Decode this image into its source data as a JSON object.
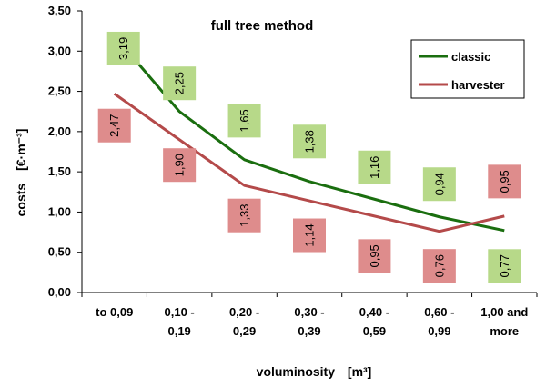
{
  "chart_data": {
    "type": "line",
    "title": "full tree method",
    "xlabel": "voluminosity",
    "xlabel_unit": "[m³]",
    "ylabel": "costs",
    "ylabel_unit": "[€·m⁻³]",
    "ylim": [
      0,
      3.5
    ],
    "yticks": [
      "0,00",
      "0,50",
      "1,00",
      "1,50",
      "2,00",
      "2,50",
      "3,00",
      "3,50"
    ],
    "categories": [
      [
        "to 0,09"
      ],
      [
        "0,10 -",
        "0,19"
      ],
      [
        "0,20 -",
        "0,29"
      ],
      [
        "0,30 -",
        "0,39"
      ],
      [
        "0,40 -",
        "0,59"
      ],
      [
        "0,60 -",
        "0,99"
      ],
      [
        "1,00 and",
        "more"
      ]
    ],
    "grid": false,
    "legend_position": "top-right",
    "series": [
      {
        "name": "classic",
        "color": "#1a6e0f",
        "label_bg": "#b7d989",
        "values": [
          3.19,
          2.25,
          1.65,
          1.38,
          1.16,
          0.94,
          0.77
        ],
        "labels": [
          "3,19",
          "2,25",
          "1,65",
          "1,38",
          "1,16",
          "0,94",
          "0,77"
        ]
      },
      {
        "name": "harvester",
        "color": "#b44a4a",
        "label_bg": "#de8c8c",
        "values": [
          2.47,
          1.9,
          1.33,
          1.14,
          0.95,
          0.76,
          0.95
        ],
        "labels": [
          "2,47",
          "1,90",
          "1,33",
          "1,14",
          "0,95",
          "0,76",
          "0,95"
        ]
      }
    ]
  }
}
